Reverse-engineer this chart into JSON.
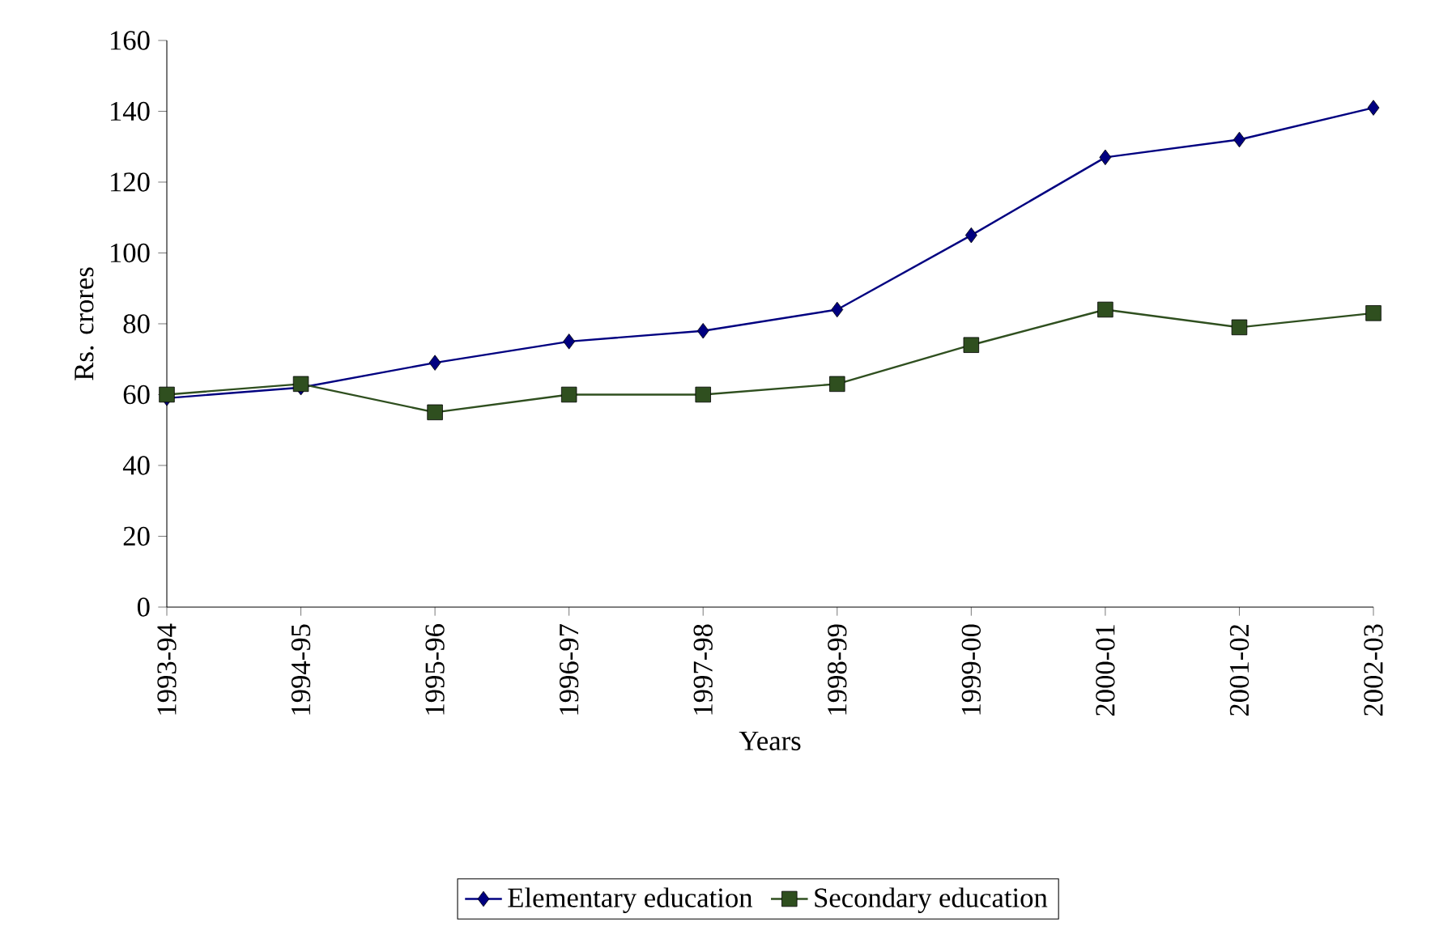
{
  "chart_data": {
    "type": "line",
    "xlabel": "Years",
    "ylabel": "Rs. crores",
    "categories": [
      "1993-94",
      "1994-95",
      "1995-96",
      "1996-97",
      "1997-98",
      "1998-99",
      "1999-00",
      "2000-01",
      "2001-02",
      "2002-03"
    ],
    "series": [
      {
        "name": "Elementary education",
        "color": "#000080",
        "marker": "diamond",
        "values": [
          59,
          62,
          69,
          75,
          78,
          84,
          105,
          127,
          132,
          141
        ]
      },
      {
        "name": "Secondary education",
        "color": "#2f4f1f",
        "marker": "square",
        "values": [
          60,
          63,
          55,
          60,
          60,
          63,
          74,
          84,
          79,
          83
        ]
      }
    ],
    "ylim": [
      0,
      160
    ],
    "yticks": [
      0,
      20,
      40,
      60,
      80,
      100,
      120,
      140,
      160
    ],
    "legend": "bottom",
    "grid": false
  }
}
